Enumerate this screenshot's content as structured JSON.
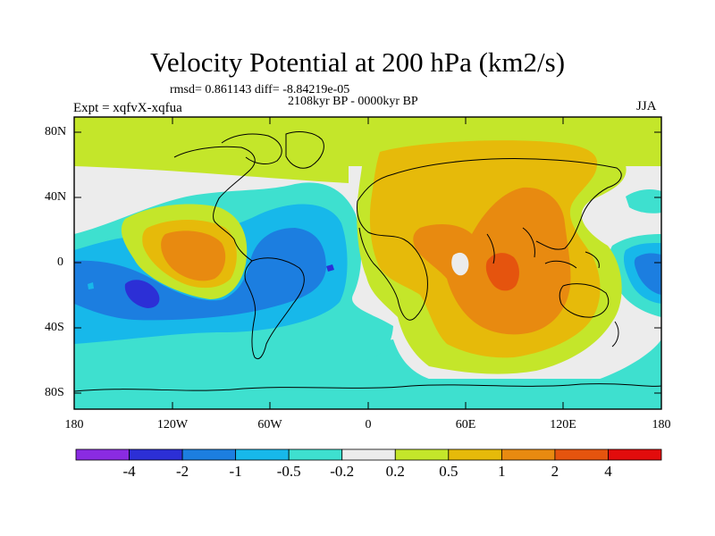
{
  "title": "Velocity Potential at 200 hPa (km2/s)",
  "stats": "rmsd= 0.861143 diff= -8.84219e-05",
  "period": "2108kyr BP - 0000kyr BP",
  "experiment": "Expt = xqfvX-xqfua",
  "season": "JJA",
  "lat_labels": [
    "80N",
    "40N",
    "0",
    "40S",
    "80S"
  ],
  "lon_labels": [
    "180",
    "120W",
    "60W",
    "0",
    "60E",
    "120E",
    "180"
  ],
  "colorbar": {
    "labels": [
      "-4",
      "-2",
      "-1",
      "-0.5",
      "-0.2",
      "0.2",
      "0.5",
      "1",
      "2",
      "4"
    ],
    "colors": [
      "#8a2be2",
      "#2c2fd6",
      "#1c7ee0",
      "#17b8ea",
      "#3ee0cf",
      "#ececec",
      "#c4e62a",
      "#e6ba0a",
      "#e88a10",
      "#e5540e",
      "#e20c0c"
    ]
  },
  "palette": {
    "lt_neg4": "#8a2be2",
    "neg4_neg2": "#2c2fd6",
    "neg2_neg1": "#1c7ee0",
    "neg1_neg05": "#17b8ea",
    "neg05_neg02": "#3ee0cf",
    "neg02_02": "#ececec",
    "p02_p05": "#c4e62a",
    "p05_p1": "#e6ba0a",
    "p1_p2": "#e88a10",
    "p2_p4": "#e5540e",
    "gt_p4": "#e20c0c"
  }
}
